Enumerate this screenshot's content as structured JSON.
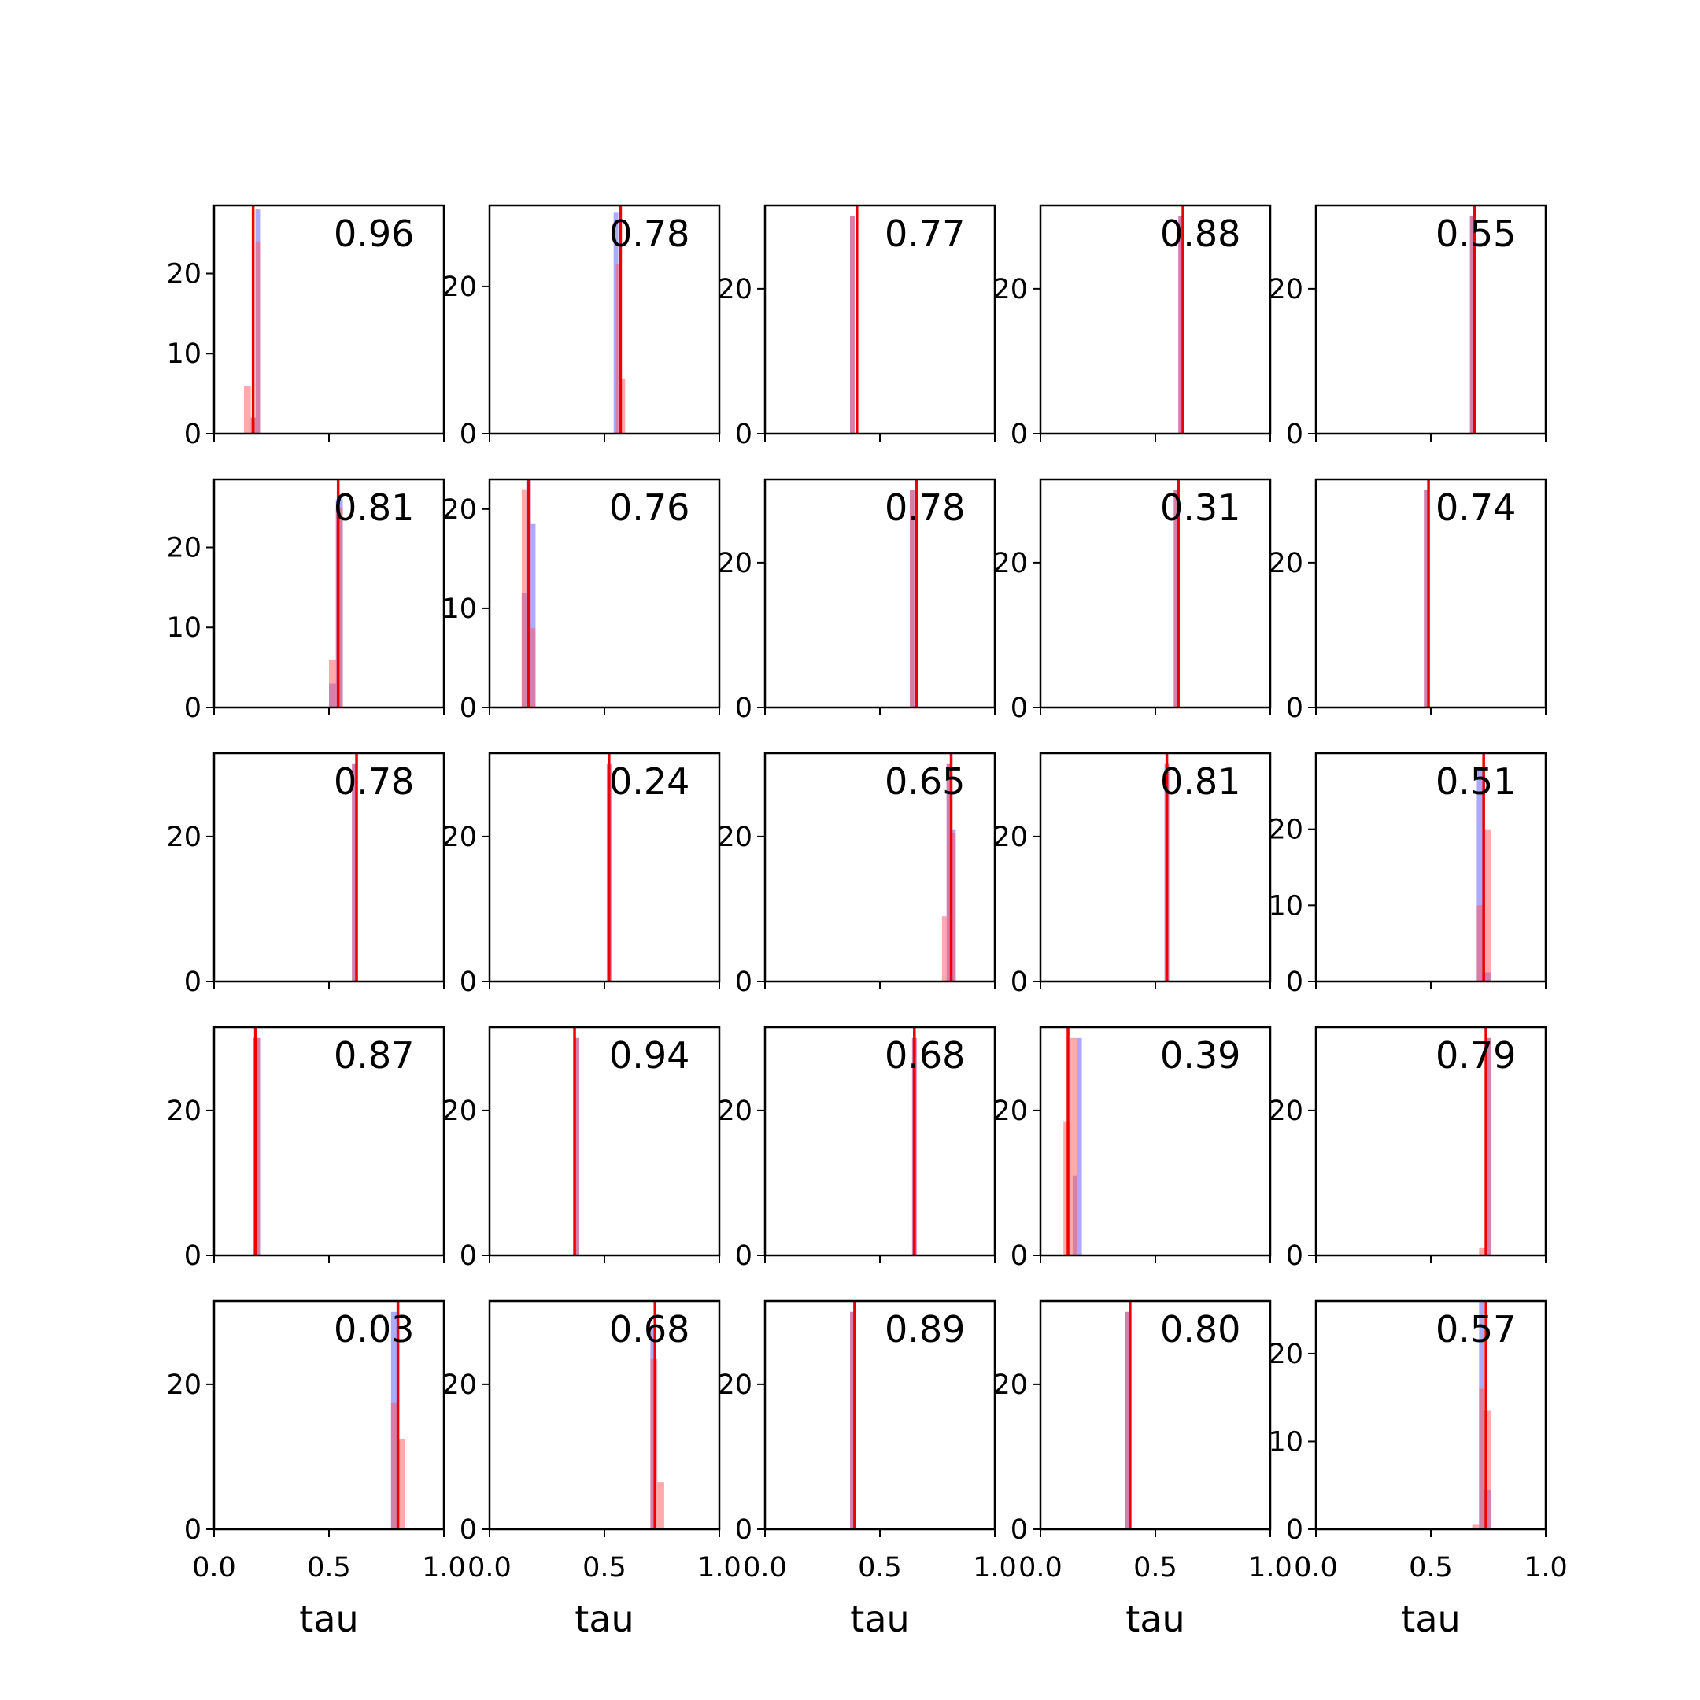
{
  "chart_data": {
    "type": "histogram-grid",
    "rows": 5,
    "cols": 5,
    "xlim": [
      0,
      1
    ],
    "x_ticks": [
      0.0,
      0.5,
      1.0
    ],
    "x_tick_labels": [
      "0.0",
      "0.5",
      "1.0"
    ],
    "xlabel": "tau",
    "colors": {
      "histogram_a": "#5555ff",
      "histogram_b": "#ff5555",
      "reference_line": "#ee0000",
      "axes": "#000000"
    },
    "panels": [
      {
        "annotation": "0.96",
        "ylim": [
          0,
          28.5
        ],
        "y_ticks": [
          0,
          10,
          20
        ],
        "y_tick_labels": [
          "0",
          "10",
          "20"
        ],
        "ref_line": 0.17,
        "hist_a": [
          [
            0.16,
            0.18,
            2
          ],
          [
            0.18,
            0.2,
            28
          ]
        ],
        "hist_b": [
          [
            0.13,
            0.16,
            6
          ],
          [
            0.16,
            0.18,
            2
          ],
          [
            0.18,
            0.2,
            24
          ]
        ]
      },
      {
        "annotation": "0.78",
        "ylim": [
          0,
          31
        ],
        "y_ticks": [
          0,
          20
        ],
        "y_tick_labels": [
          "0",
          "20"
        ],
        "ref_line": 0.57,
        "hist_a": [
          [
            0.54,
            0.56,
            30
          ]
        ],
        "hist_b": [
          [
            0.55,
            0.57,
            23
          ],
          [
            0.57,
            0.59,
            7.5
          ]
        ]
      },
      {
        "annotation": "0.77",
        "ylim": [
          0,
          31.5
        ],
        "y_ticks": [
          0,
          20
        ],
        "y_tick_labels": [
          "0",
          "20"
        ],
        "ref_line": 0.4,
        "hist_a": [
          [
            0.37,
            0.39,
            30
          ]
        ],
        "hist_b": [
          [
            0.37,
            0.39,
            30
          ]
        ]
      },
      {
        "annotation": "0.88",
        "ylim": [
          0,
          31.5
        ],
        "y_ticks": [
          0,
          20
        ],
        "y_tick_labels": [
          "0",
          "20"
        ],
        "ref_line": 0.62,
        "hist_a": [
          [
            0.6,
            0.62,
            30
          ]
        ],
        "hist_b": [
          [
            0.6,
            0.62,
            30
          ]
        ]
      },
      {
        "annotation": "0.55",
        "ylim": [
          0,
          31.5
        ],
        "y_ticks": [
          0,
          20
        ],
        "y_tick_labels": [
          "0",
          "20"
        ],
        "ref_line": 0.69,
        "hist_a": [
          [
            0.67,
            0.69,
            30
          ]
        ],
        "hist_b": [
          [
            0.67,
            0.69,
            30
          ]
        ]
      },
      {
        "annotation": "0.81",
        "ylim": [
          0,
          28.5
        ],
        "y_ticks": [
          0,
          10,
          20
        ],
        "y_tick_labels": [
          "0",
          "10",
          "20"
        ],
        "ref_line": 0.54,
        "hist_a": [
          [
            0.5,
            0.53,
            3
          ],
          [
            0.53,
            0.56,
            26
          ]
        ],
        "hist_b": [
          [
            0.5,
            0.53,
            6
          ],
          [
            0.53,
            0.56,
            25
          ]
        ]
      },
      {
        "annotation": "0.76",
        "ylim": [
          0,
          23
        ],
        "y_ticks": [
          0,
          10,
          20
        ],
        "y_tick_labels": [
          "0",
          "10",
          "20"
        ],
        "ref_line": 0.17,
        "hist_a": [
          [
            0.14,
            0.16,
            11.5
          ],
          [
            0.16,
            0.18,
            23
          ],
          [
            0.18,
            0.2,
            18.5
          ]
        ],
        "hist_b": [
          [
            0.14,
            0.16,
            22
          ],
          [
            0.16,
            0.18,
            23
          ],
          [
            0.18,
            0.2,
            8
          ]
        ]
      },
      {
        "annotation": "0.78",
        "ylim": [
          0,
          31.5
        ],
        "y_ticks": [
          0,
          20
        ],
        "y_tick_labels": [
          "0",
          "20"
        ],
        "ref_line": 0.66,
        "hist_a": [
          [
            0.63,
            0.65,
            30
          ]
        ],
        "hist_b": [
          [
            0.63,
            0.65,
            30
          ]
        ]
      },
      {
        "annotation": "0.31",
        "ylim": [
          0,
          31.5
        ],
        "y_ticks": [
          0,
          20
        ],
        "y_tick_labels": [
          "0",
          "20"
        ],
        "ref_line": 0.6,
        "hist_a": [
          [
            0.58,
            0.6,
            30
          ]
        ],
        "hist_b": [
          [
            0.58,
            0.6,
            30
          ]
        ]
      },
      {
        "annotation": "0.74",
        "ylim": [
          0,
          31.5
        ],
        "y_ticks": [
          0,
          20
        ],
        "y_tick_labels": [
          "0",
          "20"
        ],
        "ref_line": 0.49,
        "hist_a": [
          [
            0.47,
            0.49,
            30
          ]
        ],
        "hist_b": [
          [
            0.47,
            0.49,
            30
          ]
        ]
      },
      {
        "annotation": "0.78",
        "ylim": [
          0,
          31.5
        ],
        "y_ticks": [
          0,
          20
        ],
        "y_tick_labels": [
          "0",
          "20"
        ],
        "ref_line": 0.62,
        "hist_a": [
          [
            0.6,
            0.62,
            30
          ]
        ],
        "hist_b": [
          [
            0.6,
            0.62,
            30
          ]
        ]
      },
      {
        "annotation": "0.24",
        "ylim": [
          0,
          31.5
        ],
        "y_ticks": [
          0,
          20
        ],
        "y_tick_labels": [
          "0",
          "20"
        ],
        "ref_line": 0.52,
        "hist_a": [
          [
            0.51,
            0.53,
            30
          ]
        ],
        "hist_b": [
          [
            0.51,
            0.53,
            30
          ]
        ]
      },
      {
        "annotation": "0.65",
        "ylim": [
          0,
          31.5
        ],
        "y_ticks": [
          0,
          20
        ],
        "y_tick_labels": [
          "0",
          "20"
        ],
        "ref_line": 0.81,
        "hist_a": [
          [
            0.79,
            0.81,
            30
          ],
          [
            0.81,
            0.83,
            21
          ]
        ],
        "hist_b": [
          [
            0.77,
            0.79,
            9
          ],
          [
            0.79,
            0.81,
            30
          ],
          [
            0.81,
            0.83,
            20.5
          ]
        ]
      },
      {
        "annotation": "0.81",
        "ylim": [
          0,
          31.5
        ],
        "y_ticks": [
          0,
          20
        ],
        "y_tick_labels": [
          "0",
          "20"
        ],
        "ref_line": 0.55,
        "hist_a": [
          [
            0.54,
            0.56,
            30
          ]
        ],
        "hist_b": [
          [
            0.54,
            0.56,
            30
          ]
        ]
      },
      {
        "annotation": "0.51",
        "ylim": [
          0,
          30
        ],
        "y_ticks": [
          0,
          10,
          20
        ],
        "y_tick_labels": [
          "0",
          "10",
          "20"
        ],
        "ref_line": 0.73,
        "hist_a": [
          [
            0.7,
            0.73,
            28
          ],
          [
            0.73,
            0.76,
            1.2
          ]
        ],
        "hist_b": [
          [
            0.7,
            0.73,
            10
          ],
          [
            0.73,
            0.76,
            20
          ]
        ]
      },
      {
        "annotation": "0.87",
        "ylim": [
          0,
          31.5
        ],
        "y_ticks": [
          0,
          20
        ],
        "y_tick_labels": [
          "0",
          "20"
        ],
        "ref_line": 0.18,
        "hist_a": [
          [
            0.17,
            0.2,
            30
          ]
        ],
        "hist_b": [
          [
            0.17,
            0.2,
            30
          ]
        ]
      },
      {
        "annotation": "0.94",
        "ylim": [
          0,
          31.5
        ],
        "y_ticks": [
          0,
          20
        ],
        "y_tick_labels": [
          "0",
          "20"
        ],
        "ref_line": 0.37,
        "hist_a": [
          [
            0.37,
            0.39,
            30
          ]
        ],
        "hist_b": [
          [
            0.37,
            0.39,
            30
          ]
        ]
      },
      {
        "annotation": "0.68",
        "ylim": [
          0,
          31.5
        ],
        "y_ticks": [
          0,
          20
        ],
        "y_tick_labels": [
          "0",
          "20"
        ],
        "ref_line": 0.65,
        "hist_a": [
          [
            0.64,
            0.66,
            30
          ]
        ],
        "hist_b": [
          [
            0.64,
            0.66,
            30
          ]
        ]
      },
      {
        "annotation": "0.39",
        "ylim": [
          0,
          31.5
        ],
        "y_ticks": [
          0,
          20
        ],
        "y_tick_labels": [
          "0",
          "20"
        ],
        "ref_line": 0.12,
        "hist_a": [
          [
            0.14,
            0.16,
            11
          ],
          [
            0.16,
            0.18,
            30
          ]
        ],
        "hist_b": [
          [
            0.1,
            0.13,
            18.5
          ],
          [
            0.13,
            0.16,
            30
          ]
        ]
      },
      {
        "annotation": "0.79",
        "ylim": [
          0,
          31.5
        ],
        "y_ticks": [
          0,
          20
        ],
        "y_tick_labels": [
          "0",
          "20"
        ],
        "ref_line": 0.74,
        "hist_a": [
          [
            0.74,
            0.76,
            30
          ]
        ],
        "hist_b": [
          [
            0.71,
            0.74,
            1
          ],
          [
            0.74,
            0.76,
            30
          ]
        ]
      },
      {
        "annotation": "0.03",
        "ylim": [
          0,
          31.5
        ],
        "y_ticks": [
          0,
          20
        ],
        "y_tick_labels": [
          "0",
          "20"
        ],
        "ref_line": 0.8,
        "hist_a": [
          [
            0.77,
            0.8,
            30
          ]
        ],
        "hist_b": [
          [
            0.77,
            0.8,
            17.5
          ],
          [
            0.8,
            0.83,
            12.5
          ]
        ]
      },
      {
        "annotation": "0.68",
        "ylim": [
          0,
          31.5
        ],
        "y_ticks": [
          0,
          20
        ],
        "y_tick_labels": [
          "0",
          "20"
        ],
        "ref_line": 0.72,
        "hist_a": [
          [
            0.7,
            0.72,
            28
          ]
        ],
        "hist_b": [
          [
            0.7,
            0.73,
            23.5
          ],
          [
            0.73,
            0.76,
            6.5
          ]
        ]
      },
      {
        "annotation": "0.89",
        "ylim": [
          0,
          31.5
        ],
        "y_ticks": [
          0,
          20
        ],
        "y_tick_labels": [
          "0",
          "20"
        ],
        "ref_line": 0.39,
        "hist_a": [
          [
            0.37,
            0.39,
            30
          ]
        ],
        "hist_b": [
          [
            0.37,
            0.39,
            30
          ]
        ]
      },
      {
        "annotation": "0.80",
        "ylim": [
          0,
          31.5
        ],
        "y_ticks": [
          0,
          20
        ],
        "y_tick_labels": [
          "0",
          "20"
        ],
        "ref_line": 0.39,
        "hist_a": [
          [
            0.37,
            0.39,
            30
          ]
        ],
        "hist_b": [
          [
            0.37,
            0.39,
            30
          ]
        ]
      },
      {
        "annotation": "0.57",
        "ylim": [
          0,
          26
        ],
        "y_ticks": [
          0,
          10,
          20
        ],
        "y_tick_labels": [
          "0",
          "10",
          "20"
        ],
        "ref_line": 0.74,
        "hist_a": [
          [
            0.71,
            0.73,
            26
          ],
          [
            0.73,
            0.76,
            4.5
          ]
        ],
        "hist_b": [
          [
            0.68,
            0.71,
            0.5
          ],
          [
            0.71,
            0.73,
            16
          ],
          [
            0.73,
            0.76,
            13.5
          ]
        ]
      }
    ]
  }
}
